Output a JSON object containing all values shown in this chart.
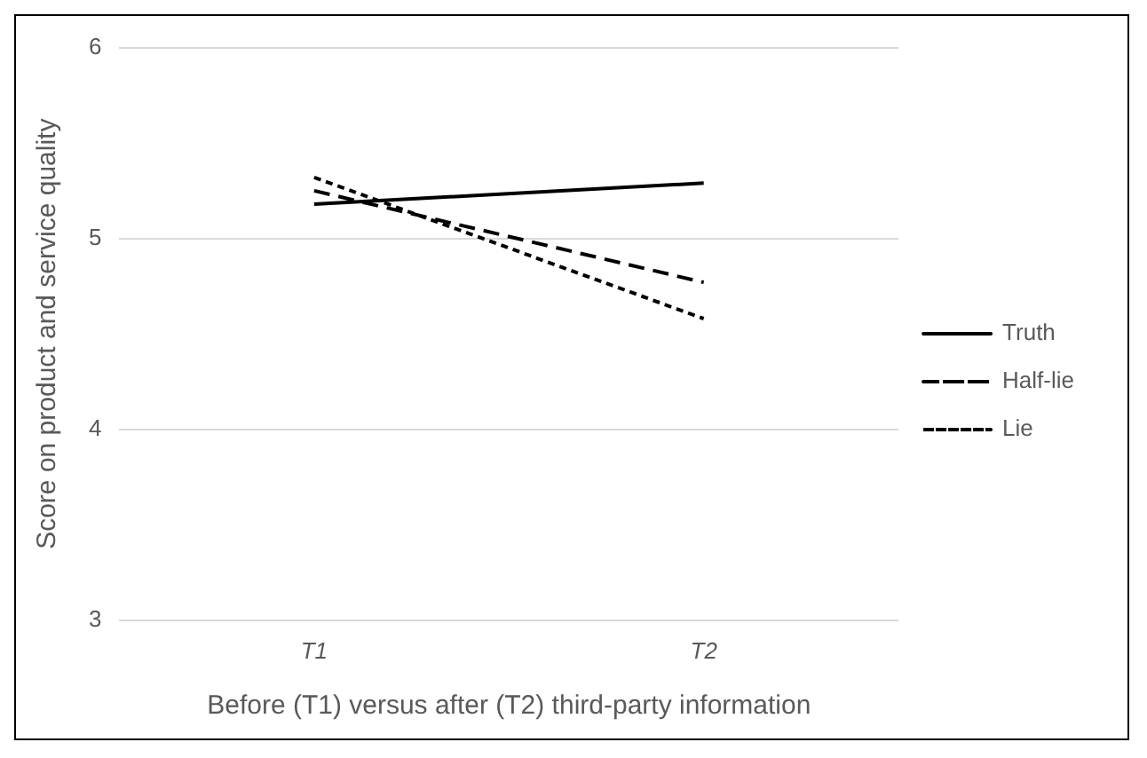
{
  "chart_data": {
    "type": "line",
    "xlabel": "Before (T1) versus after (T2) third-party information",
    "ylabel": "Score on product and service quality",
    "categories": [
      "T1",
      "T2"
    ],
    "series": [
      {
        "name": "Truth",
        "color": "#000000",
        "values": [
          5.18,
          5.29
        ],
        "line_style": "solid"
      },
      {
        "name": "Half-lie",
        "color": "#000000",
        "values": [
          5.25,
          4.77
        ],
        "line_style": "dashed"
      },
      {
        "name": "Lie",
        "color": "#000000",
        "values": [
          5.32,
          4.58
        ],
        "line_style": "dotted"
      }
    ],
    "ylim": [
      3,
      6
    ],
    "yticks": [
      3,
      4,
      5,
      6
    ],
    "grid": "y",
    "legend": "right",
    "marker": "none"
  }
}
